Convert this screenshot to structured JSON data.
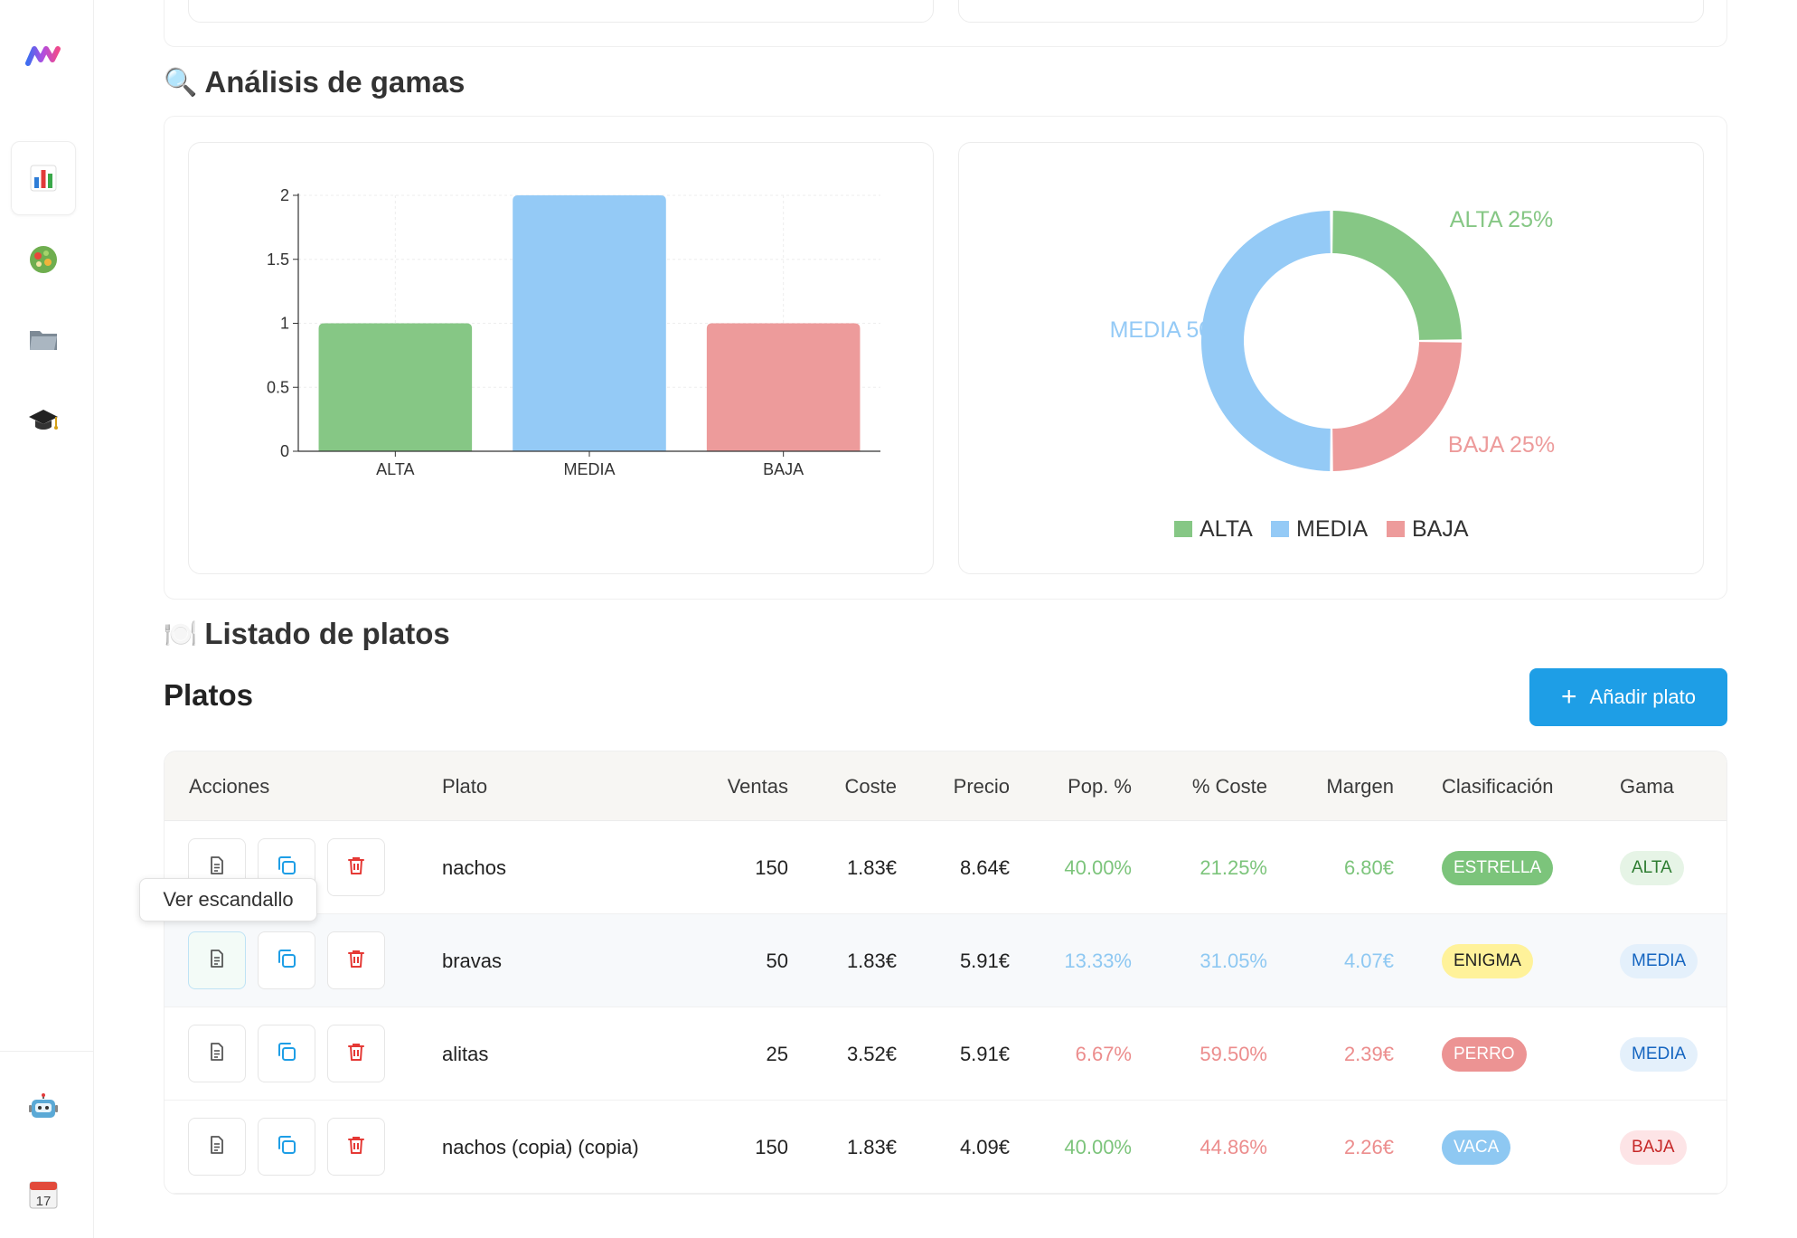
{
  "sidebar": {
    "items": [
      {
        "name": "logo",
        "icon": "m-logo-icon"
      },
      {
        "name": "dashboard",
        "icon": "bar-chart-icon",
        "active": true
      },
      {
        "name": "recipes",
        "icon": "salad-icon"
      },
      {
        "name": "files",
        "icon": "folder-icon"
      },
      {
        "name": "academy",
        "icon": "graduation-cap-icon"
      },
      {
        "name": "assistant",
        "icon": "robot-icon"
      },
      {
        "name": "calendar",
        "icon": "calendar-icon",
        "calendar_day": "17"
      }
    ]
  },
  "sections": {
    "gamas_title": "Análisis de gamas",
    "gamas_emoji": "🔍",
    "listado_title": "Listado de platos",
    "listado_emoji": "🍽️"
  },
  "chart_data": [
    {
      "type": "bar",
      "categories": [
        "ALTA",
        "MEDIA",
        "BAJA"
      ],
      "values": [
        1,
        2,
        1
      ],
      "colors": [
        "#86c785",
        "#94caf6",
        "#ed9b9b"
      ],
      "ylim": [
        0,
        2
      ],
      "yticks": [
        "0",
        "0.5",
        "1",
        "1.5",
        "2"
      ],
      "grid": true
    },
    {
      "type": "pie",
      "donut": true,
      "labels": [
        "ALTA",
        "BAJA",
        "MEDIA"
      ],
      "values": [
        25,
        25,
        50
      ],
      "slice_labels": [
        "ALTA 25%",
        "BAJA 25%",
        "MEDIA 50%"
      ],
      "colors": [
        "#86c785",
        "#ed9b9b",
        "#94caf6"
      ],
      "legend": [
        "ALTA",
        "MEDIA",
        "BAJA"
      ],
      "legend_colors": [
        "#86c785",
        "#94caf6",
        "#ed9b9b"
      ],
      "legend_placement": "bottom"
    }
  ],
  "platos": {
    "title": "Platos",
    "add_button_label": "Añadir plato",
    "tooltip": "Ver escandallo",
    "columns": [
      "Acciones",
      "Plato",
      "Ventas",
      "Coste",
      "Precio",
      "Pop. %",
      "% Coste",
      "Margen",
      "Clasificación",
      "Gama"
    ],
    "rows": [
      {
        "plato": "nachos",
        "ventas": "150",
        "coste": "1.83€",
        "precio": "8.64€",
        "pop": "40.00%",
        "pct_coste": "21.25%",
        "margen": "6.80€",
        "clasificacion": "ESTRELLA",
        "gama": "ALTA",
        "pop_color": "#7cc47b",
        "pct_color": "#7cc47b",
        "margen_color": "#7cc47b",
        "clas_bg": "#7cc47b",
        "clas_fg": "#ffffff",
        "gama_bg": "#e6f4e6",
        "gama_fg": "#2e7d32"
      },
      {
        "plato": "bravas",
        "ventas": "50",
        "coste": "1.83€",
        "precio": "5.91€",
        "pop": "13.33%",
        "pct_coste": "31.05%",
        "margen": "4.07€",
        "clasificacion": "ENIGMA",
        "gama": "MEDIA",
        "pop_color": "#8ec8f2",
        "pct_color": "#8ec8f2",
        "margen_color": "#8ec8f2",
        "clas_bg": "#fff29a",
        "clas_fg": "#222222",
        "gama_bg": "#e4f0fb",
        "gama_fg": "#1565c0"
      },
      {
        "plato": "alitas",
        "ventas": "25",
        "coste": "3.52€",
        "precio": "5.91€",
        "pop": "6.67%",
        "pct_coste": "59.50%",
        "margen": "2.39€",
        "clasificacion": "PERRO",
        "gama": "MEDIA",
        "pop_color": "#ec8d8d",
        "pct_color": "#ec8d8d",
        "margen_color": "#ec8d8d",
        "clas_bg": "#ec9393",
        "clas_fg": "#ffffff",
        "gama_bg": "#e4f0fb",
        "gama_fg": "#1565c0"
      },
      {
        "plato": "nachos (copia) (copia)",
        "ventas": "150",
        "coste": "1.83€",
        "precio": "4.09€",
        "pop": "40.00%",
        "pct_coste": "44.86%",
        "margen": "2.26€",
        "clasificacion": "VACA",
        "gama": "BAJA",
        "pop_color": "#7cc47b",
        "pct_color": "#ec8d8d",
        "margen_color": "#ec8d8d",
        "clas_bg": "#8ec8f2",
        "clas_fg": "#ffffff",
        "gama_bg": "#fde4e6",
        "gama_fg": "#c62828"
      }
    ]
  }
}
